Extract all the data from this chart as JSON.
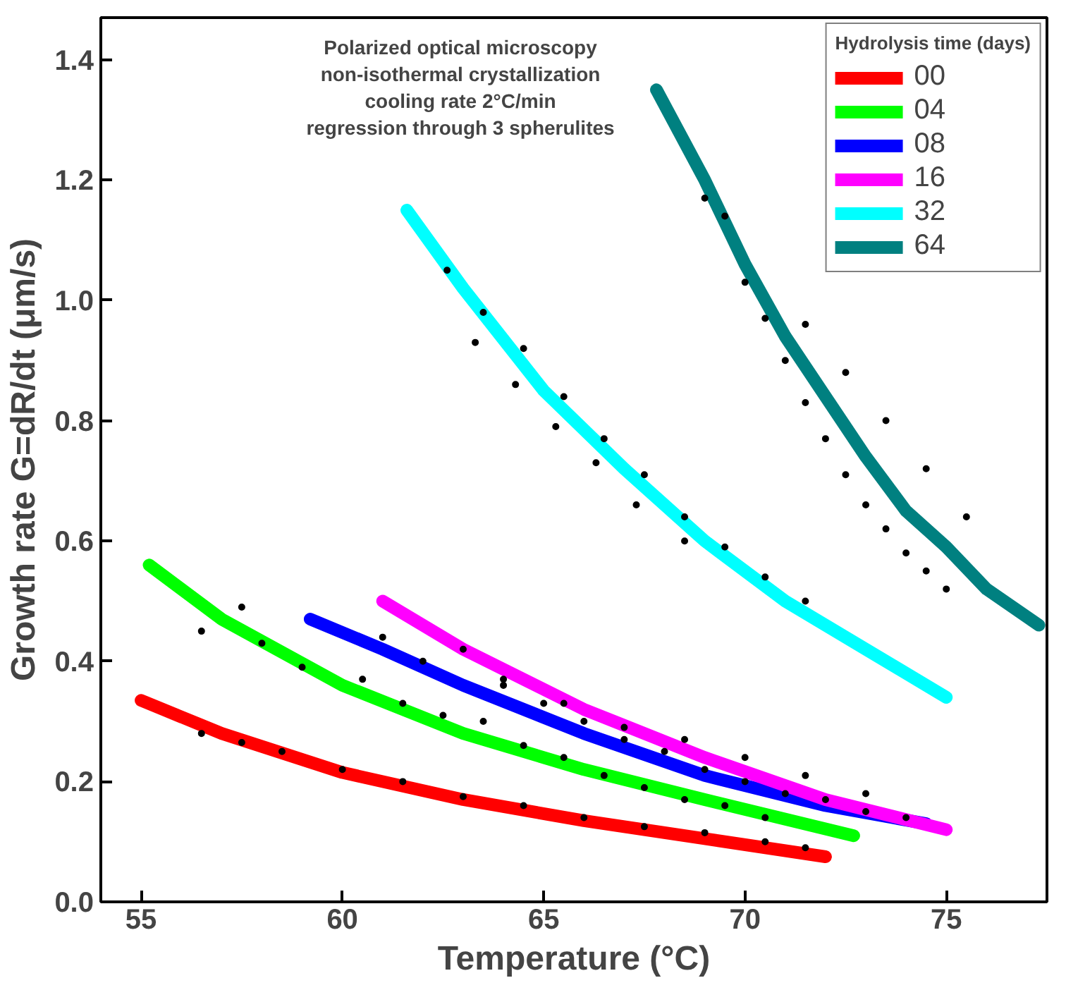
{
  "chart_data": {
    "type": "line",
    "xlabel": "Temperature (°C)",
    "ylabel": "Growth rate G=dR/dt (μm/s)",
    "legend_title": "Hydrolysis time (days)",
    "annotations": [
      "Polarized optical microscopy",
      "non-isothermal crystallization",
      "cooling rate 2°C/min",
      "regression through 3 spherulites"
    ],
    "xlim": [
      54,
      77.5
    ],
    "xticks": [
      55,
      60,
      65,
      70,
      75
    ],
    "ylim": [
      0,
      1.47
    ],
    "yticks": [
      {
        "value": 0,
        "label": "0.0"
      },
      0.2,
      0.4,
      0.6,
      0.8,
      {
        "value": 1,
        "label": "1.0"
      },
      1.2,
      1.4
    ],
    "grid": false,
    "legend": "top right",
    "line_style": "solid",
    "series": [
      {
        "name": "00",
        "color": "#ff0000",
        "x": [
          55,
          57,
          60,
          63,
          66,
          69,
          72
        ],
        "values": [
          0.335,
          0.28,
          0.215,
          0.17,
          0.135,
          0.105,
          0.075
        ]
      },
      {
        "name": "04",
        "color": "#00ff00",
        "x": [
          55.2,
          57,
          60,
          63,
          66,
          69,
          72.7
        ],
        "values": [
          0.56,
          0.47,
          0.36,
          0.28,
          0.22,
          0.17,
          0.11
        ]
      },
      {
        "name": "08",
        "color": "#0000ff",
        "x": [
          59.2,
          61,
          63,
          66,
          69,
          72,
          74.5
        ],
        "values": [
          0.47,
          0.42,
          0.36,
          0.28,
          0.21,
          0.16,
          0.13
        ]
      },
      {
        "name": "16",
        "color": "#ff00ff",
        "x": [
          61,
          63,
          66,
          69,
          72,
          75
        ],
        "values": [
          0.5,
          0.42,
          0.32,
          0.24,
          0.17,
          0.12
        ]
      },
      {
        "name": "32",
        "color": "#00ffff",
        "x": [
          61.6,
          63,
          65,
          67,
          69,
          71,
          73,
          75
        ],
        "values": [
          1.15,
          1.02,
          0.85,
          0.72,
          0.6,
          0.5,
          0.42,
          0.34
        ]
      },
      {
        "name": "64",
        "color": "#008080",
        "x": [
          67.8,
          69,
          70,
          71,
          72,
          73,
          74,
          75,
          76,
          77.3
        ],
        "values": [
          1.35,
          1.2,
          1.06,
          0.94,
          0.84,
          0.74,
          0.65,
          0.59,
          0.52,
          0.46
        ]
      },
      {
        "type": "scatter",
        "color": "#000000",
        "marker": "circle",
        "x": [
          56.5,
          57.5,
          58.5,
          60,
          61.5,
          63,
          64.5,
          66,
          67.5,
          69,
          70.5,
          71.5,
          56.5,
          57.5,
          58,
          59,
          60.5,
          61.5,
          62.5,
          63.5,
          64.5,
          65.5,
          66.5,
          67.5,
          68.5,
          69.5,
          70.5,
          61,
          62,
          63,
          64,
          65,
          66,
          67,
          68,
          69,
          70,
          71,
          72,
          73,
          74,
          64,
          65.5,
          67,
          68.5,
          70,
          71.5,
          73,
          62.6,
          63.5,
          64.5,
          65.5,
          66.5,
          67.5,
          68.5,
          69.5,
          70.5,
          71.5,
          63.3,
          64.3,
          65.3,
          66.3,
          67.3,
          68.5,
          69,
          69.5,
          70,
          70.5,
          71,
          71.5,
          72,
          72.5,
          73,
          73.5,
          74,
          74.5,
          75,
          71.5,
          72.5,
          73.5,
          74.5,
          75.5
        ],
        "values": [
          0.28,
          0.265,
          0.25,
          0.22,
          0.2,
          0.175,
          0.16,
          0.14,
          0.125,
          0.115,
          0.1,
          0.09,
          0.45,
          0.49,
          0.43,
          0.39,
          0.37,
          0.33,
          0.31,
          0.3,
          0.26,
          0.24,
          0.21,
          0.19,
          0.17,
          0.16,
          0.14,
          0.44,
          0.4,
          0.42,
          0.37,
          0.33,
          0.3,
          0.27,
          0.25,
          0.22,
          0.2,
          0.18,
          0.17,
          0.15,
          0.14,
          0.36,
          0.33,
          0.29,
          0.27,
          0.24,
          0.21,
          0.18,
          1.05,
          0.98,
          0.92,
          0.84,
          0.77,
          0.71,
          0.64,
          0.59,
          0.54,
          0.5,
          0.93,
          0.86,
          0.79,
          0.73,
          0.66,
          0.6,
          1.17,
          1.14,
          1.03,
          0.97,
          0.9,
          0.83,
          0.77,
          0.71,
          0.66,
          0.62,
          0.58,
          0.55,
          0.52,
          0.96,
          0.88,
          0.8,
          0.72,
          0.64
        ]
      }
    ]
  }
}
